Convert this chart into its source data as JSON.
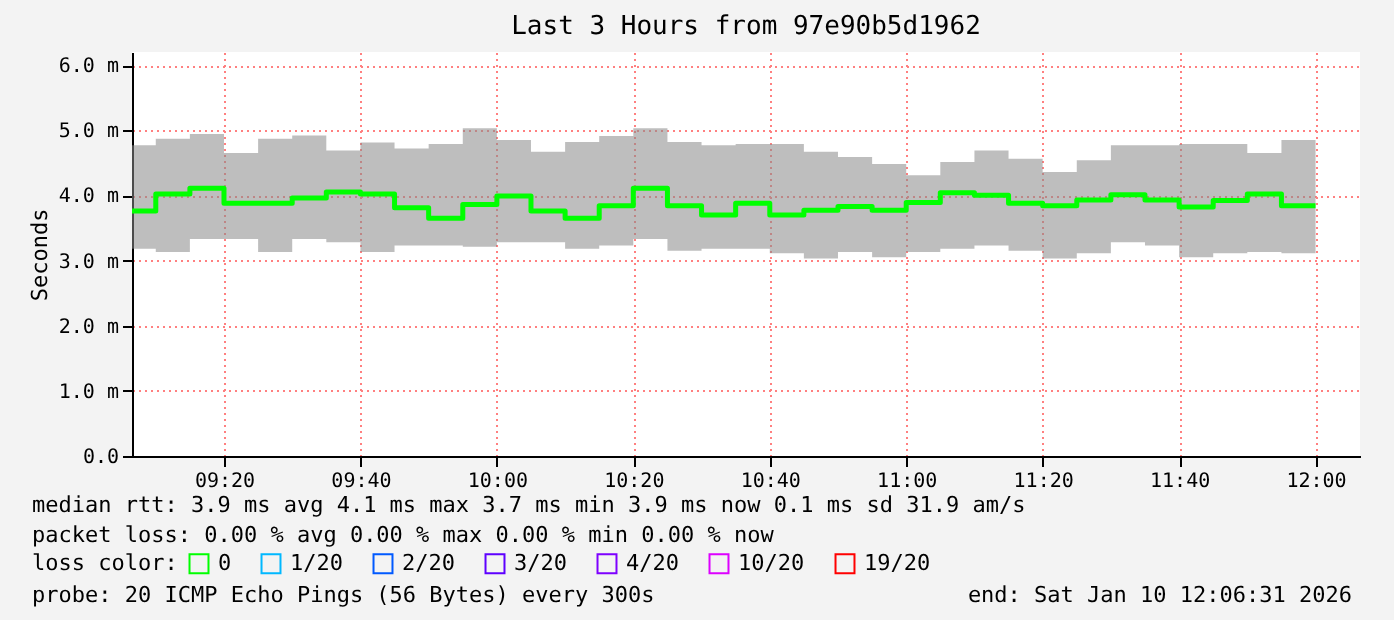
{
  "chart_data": {
    "type": "step",
    "title": "Last 3 Hours from 97e90b5d1962",
    "ylabel": "Seconds",
    "x": [
      9.1086,
      9.1667,
      9.25,
      9.3333,
      9.4167,
      9.5,
      9.5833,
      9.6667,
      9.75,
      9.8333,
      9.9167,
      10.0,
      10.0833,
      10.1667,
      10.25,
      10.3333,
      10.4167,
      10.5,
      10.5833,
      10.6667,
      10.75,
      10.8333,
      10.9167,
      11.0,
      11.0833,
      11.1667,
      11.25,
      11.3333,
      11.4167,
      11.5,
      11.5833,
      11.6667,
      11.75,
      11.8333,
      11.9167,
      12.0
    ],
    "series": [
      {
        "name": "0",
        "color": "#00ff00",
        "values": [
          3.76,
          3.76,
          4.02,
          4.11,
          3.88,
          3.88,
          3.96,
          4.05,
          4.02,
          3.81,
          3.65,
          3.86,
          3.99,
          3.76,
          3.65,
          3.84,
          4.11,
          3.84,
          3.7,
          3.88,
          3.7,
          3.77,
          3.83,
          3.77,
          3.89,
          4.04,
          4.0,
          3.88,
          3.84,
          3.93,
          4.01,
          3.93,
          3.82,
          3.92,
          4.02,
          3.84
        ],
        "lower": [
          3.18,
          3.18,
          3.13,
          3.33,
          3.33,
          3.13,
          3.33,
          3.28,
          3.13,
          3.23,
          3.23,
          3.21,
          3.28,
          3.28,
          3.18,
          3.23,
          3.33,
          3.15,
          3.18,
          3.18,
          3.11,
          3.03,
          3.13,
          3.05,
          3.13,
          3.18,
          3.23,
          3.15,
          3.03,
          3.11,
          3.28,
          3.23,
          3.05,
          3.11,
          3.13,
          3.11
        ],
        "upper": [
          4.77,
          4.77,
          4.87,
          4.94,
          4.65,
          4.87,
          4.92,
          4.69,
          4.81,
          4.72,
          4.79,
          5.03,
          4.85,
          4.67,
          4.82,
          4.91,
          5.03,
          4.82,
          4.77,
          4.79,
          4.79,
          4.67,
          4.59,
          4.48,
          4.31,
          4.51,
          4.69,
          4.56,
          4.36,
          4.54,
          4.77,
          4.77,
          4.79,
          4.79,
          4.65,
          4.85
        ]
      },
      {
        "name": "1/20",
        "color": "#00b8ff",
        "values": [
          null,
          null,
          null,
          null,
          null,
          null,
          null,
          null,
          null,
          null,
          null,
          null,
          null,
          null,
          null,
          null,
          null,
          null,
          null,
          null,
          null,
          null,
          null,
          null,
          null,
          null,
          null,
          null,
          null,
          null,
          null,
          null,
          null,
          null,
          null,
          null
        ]
      },
      {
        "name": "2/20",
        "color": "#0059ff",
        "values": [
          null,
          null,
          null,
          null,
          null,
          null,
          null,
          null,
          null,
          null,
          null,
          null,
          null,
          null,
          null,
          null,
          null,
          null,
          null,
          null,
          null,
          null,
          null,
          null,
          null,
          null,
          null,
          null,
          null,
          null,
          null,
          null,
          null,
          null,
          null,
          null
        ]
      },
      {
        "name": "3/20",
        "color": "#5e00ff",
        "values": [
          null,
          null,
          null,
          null,
          null,
          null,
          null,
          null,
          null,
          null,
          null,
          null,
          null,
          null,
          null,
          null,
          null,
          null,
          null,
          null,
          null,
          null,
          null,
          null,
          null,
          null,
          null,
          null,
          null,
          null,
          null,
          null,
          null,
          null,
          null,
          null
        ]
      },
      {
        "name": "4/20",
        "color": "#7e00ff",
        "values": [
          null,
          null,
          null,
          null,
          null,
          null,
          null,
          null,
          null,
          null,
          null,
          null,
          null,
          null,
          null,
          null,
          null,
          null,
          null,
          null,
          null,
          null,
          null,
          null,
          null,
          null,
          null,
          null,
          null,
          null,
          null,
          null,
          null,
          null,
          null,
          null
        ]
      },
      {
        "name": "10/20",
        "color": "#dd00ff",
        "values": [
          null,
          null,
          null,
          null,
          null,
          null,
          null,
          null,
          null,
          null,
          null,
          null,
          null,
          null,
          null,
          null,
          null,
          null,
          null,
          null,
          null,
          null,
          null,
          null,
          null,
          null,
          null,
          null,
          null,
          null,
          null,
          null,
          null,
          null,
          null,
          null
        ]
      },
      {
        "name": "19/20",
        "color": "#ff0000",
        "values": [
          null,
          null,
          null,
          null,
          null,
          null,
          null,
          null,
          null,
          null,
          null,
          null,
          null,
          null,
          null,
          null,
          null,
          null,
          null,
          null,
          null,
          null,
          null,
          null,
          null,
          null,
          null,
          null,
          null,
          null,
          null,
          null,
          null,
          null,
          null,
          null
        ]
      }
    ],
    "legend_title": "loss color:",
    "legend": "bottom",
    "xlim": [
      9.1086,
      12.1086
    ],
    "xticks": [
      {
        "value": 9.3333,
        "label": "09:20"
      },
      {
        "value": 9.6667,
        "label": "09:40"
      },
      {
        "value": 10.0,
        "label": "10:00"
      },
      {
        "value": 10.3333,
        "label": "10:20"
      },
      {
        "value": 10.6667,
        "label": "10:40"
      },
      {
        "value": 11.0,
        "label": "11:00"
      },
      {
        "value": 11.3333,
        "label": "11:20"
      },
      {
        "value": 11.6667,
        "label": "11:40"
      },
      {
        "value": 12.0,
        "label": "12:00"
      }
    ],
    "ylim": [
      0,
      6.2
    ],
    "yticks": [
      {
        "value": 0,
        "label": "0.0"
      },
      {
        "value": 1,
        "label": "1.0 m"
      },
      {
        "value": 2,
        "label": "2.0 m"
      },
      {
        "value": 3,
        "label": "3.0 m"
      },
      {
        "value": 4,
        "label": "4.0 m"
      },
      {
        "value": 5,
        "label": "5.0 m"
      },
      {
        "value": 6,
        "label": "6.0 m"
      }
    ],
    "grid": true,
    "annotations": [
      "median rtt:  3.9 ms avg  4.1 ms max  3.7 ms min  3.9 ms now  0.1 ms sd  31.9   am/s",
      "packet loss: 0.00 % avg  0.00 % max  0.00 % min  0.00 % now",
      "probe:       20 ICMP Echo Pings (56 Bytes) every 300s",
      "end: Sat Jan 10 12:06:31 2026"
    ]
  }
}
